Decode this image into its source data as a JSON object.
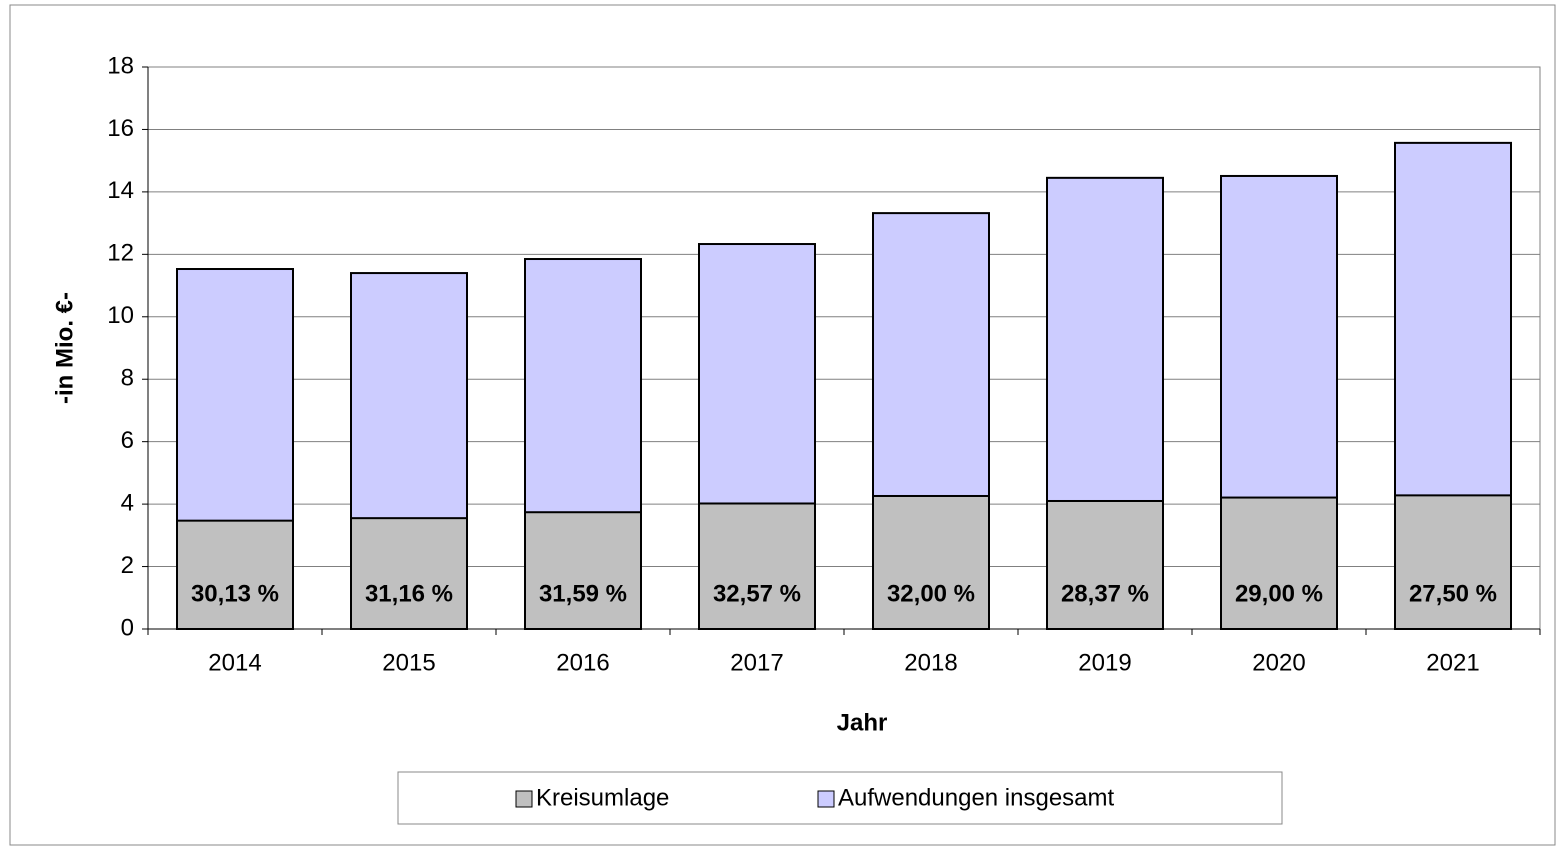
{
  "chart_data": {
    "type": "bar",
    "overlap": true,
    "x_label": "Jahr",
    "y_label": "-in Mio. €-",
    "categories": [
      "2014",
      "2015",
      "2016",
      "2017",
      "2018",
      "2019",
      "2020",
      "2021"
    ],
    "series": [
      {
        "name": "Kreisumlage",
        "color": "#c0c0c0",
        "values": [
          3.47,
          3.55,
          3.74,
          4.02,
          4.26,
          4.1,
          4.21,
          4.28
        ]
      },
      {
        "name": "Aufwendungen insgesamt",
        "color": "#ccccff",
        "values": [
          11.53,
          11.4,
          11.85,
          12.33,
          13.32,
          14.45,
          14.51,
          15.57
        ]
      }
    ],
    "annotations": [
      "30,13 %",
      "31,16 %",
      "31,59 %",
      "32,57 %",
      "32,00 %",
      "28,37 %",
      "29,00 %",
      "27,50 %"
    ],
    "ylim": [
      0,
      18
    ],
    "yticks": [
      0,
      2,
      4,
      6,
      8,
      10,
      12,
      14,
      16,
      18
    ],
    "grid": true,
    "legend": "bottom"
  }
}
